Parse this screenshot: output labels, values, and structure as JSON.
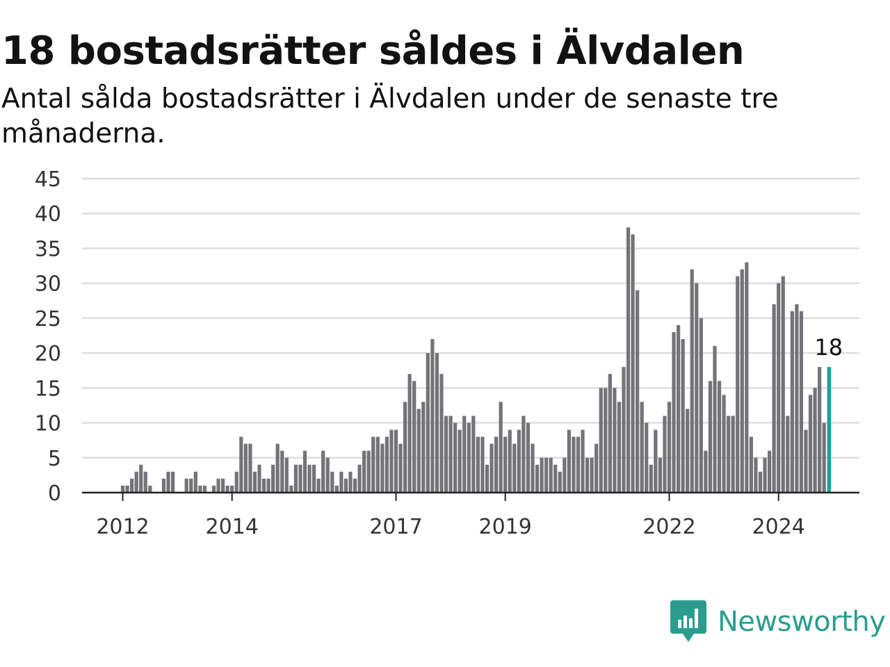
{
  "header": {
    "title": "18 bostadsrätter såldes i Älvdalen",
    "subtitle": "Antal sålda bostadsrätter i Älvdalen under de senaste tre månaderna."
  },
  "brand": {
    "name": "Newsworthy",
    "icon": "newsworthy-logo-icon",
    "color": "#2a9d8f"
  },
  "colors": {
    "bars": "#737378",
    "highlight": "#17a398",
    "grid": "#dddddd",
    "axis": "#222222"
  },
  "chart_data": {
    "type": "bar",
    "title": "18 bostadsrätter såldes i Älvdalen",
    "xlabel": "",
    "ylabel": "",
    "ylim": [
      0,
      45
    ],
    "yticks": [
      "0",
      "5",
      "10",
      "15",
      "20",
      "25",
      "30",
      "35",
      "40",
      "45"
    ],
    "xtick_labels": [
      {
        "label": "2012",
        "month_index": 8
      },
      {
        "label": "2014",
        "month_index": 32
      },
      {
        "label": "2017",
        "month_index": 68
      },
      {
        "label": "2019",
        "month_index": 92
      },
      {
        "label": "2022",
        "month_index": 128
      },
      {
        "label": "2024",
        "month_index": 152
      }
    ],
    "grid": true,
    "highlight_last": true,
    "last_value_label": "18",
    "values": [
      0,
      0,
      0,
      0,
      0,
      0,
      0,
      0,
      1,
      1,
      2,
      3,
      4,
      3,
      1,
      0,
      0,
      2,
      3,
      3,
      0,
      0,
      2,
      2,
      3,
      1,
      1,
      0,
      1,
      2,
      2,
      1,
      1,
      3,
      8,
      7,
      7,
      3,
      4,
      2,
      2,
      4,
      7,
      6,
      5,
      1,
      4,
      4,
      6,
      4,
      4,
      2,
      6,
      5,
      3,
      1,
      3,
      2,
      3,
      2,
      4,
      6,
      6,
      8,
      8,
      7,
      8,
      9,
      9,
      7,
      13,
      17,
      16,
      12,
      13,
      20,
      22,
      20,
      17,
      11,
      11,
      10,
      9,
      11,
      10,
      11,
      8,
      8,
      4,
      7,
      8,
      13,
      8,
      9,
      7,
      9,
      11,
      10,
      7,
      4,
      5,
      5,
      5,
      4,
      3,
      5,
      9,
      8,
      8,
      9,
      5,
      5,
      7,
      15,
      15,
      17,
      15,
      13,
      18,
      38,
      37,
      29,
      13,
      10,
      4,
      9,
      5,
      11,
      13,
      23,
      24,
      22,
      12,
      32,
      30,
      25,
      6,
      16,
      21,
      16,
      14,
      11,
      11,
      31,
      32,
      33,
      8,
      5,
      3,
      5,
      6,
      27,
      30,
      31,
      11,
      26,
      27,
      26,
      9,
      14,
      15,
      18,
      10,
      18
    ]
  }
}
